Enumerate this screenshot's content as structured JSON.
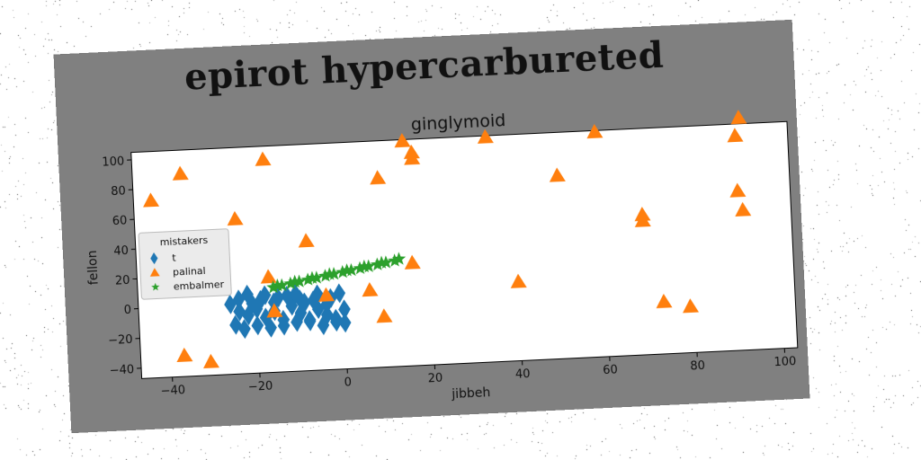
{
  "figure": {
    "suptitle": "epirot hypercarbureted",
    "background": "#808080"
  },
  "chart_data": {
    "type": "scatter",
    "title": "ginglymoid",
    "xlabel": "jibbeh",
    "ylabel": "fellon",
    "xlim": [
      -47,
      103
    ],
    "ylim": [
      -47,
      105
    ],
    "xticks": [
      -40,
      -20,
      0,
      20,
      40,
      60,
      80,
      100
    ],
    "yticks": [
      -40,
      -20,
      0,
      20,
      40,
      60,
      80,
      100
    ],
    "grid": false,
    "legend": {
      "title": "mistakers",
      "placement": "center-left"
    },
    "series": [
      {
        "name": "t",
        "marker": "diamond",
        "color": "#1f77b4",
        "points": [
          [
            -24,
            -5
          ],
          [
            -22,
            -8
          ],
          [
            -20,
            -4
          ],
          [
            -18,
            -10
          ],
          [
            -16,
            -6
          ],
          [
            -14,
            -12
          ],
          [
            -12,
            -3
          ],
          [
            -10,
            -8
          ],
          [
            -8,
            -14
          ],
          [
            -6,
            -6
          ],
          [
            -4,
            -10
          ],
          [
            -2,
            -15
          ],
          [
            0,
            -7
          ],
          [
            -25,
            -14
          ],
          [
            -23,
            -17
          ],
          [
            -20,
            -15
          ],
          [
            -17,
            -17
          ],
          [
            -14,
            -16
          ],
          [
            -11,
            -14
          ],
          [
            -8,
            -13
          ],
          [
            -5,
            -17
          ],
          [
            -2,
            -13
          ],
          [
            0,
            -16
          ],
          [
            -24,
            3
          ],
          [
            -21,
            0
          ],
          [
            -19,
            2
          ],
          [
            -16,
            0
          ],
          [
            -13,
            4
          ],
          [
            -11,
            5
          ],
          [
            -9,
            -1
          ],
          [
            -6,
            4
          ],
          [
            -3,
            1
          ],
          [
            -1,
            4
          ],
          [
            -22,
            6
          ],
          [
            -18,
            5
          ],
          [
            -15,
            3
          ],
          [
            -10,
            1
          ],
          [
            -7,
            0
          ],
          [
            -4,
            -3
          ],
          [
            -26,
            0
          ]
        ]
      },
      {
        "name": "palinal",
        "marker": "triangle",
        "color": "#ff7f0e",
        "points": [
          [
            -43,
            72
          ],
          [
            -36,
            89
          ],
          [
            -37,
            -33
          ],
          [
            -31,
            -38
          ],
          [
            -24,
            57
          ],
          [
            -17,
            96
          ],
          [
            -17,
            17
          ],
          [
            -16,
            -6
          ],
          [
            -8,
            40
          ],
          [
            -4,
            3
          ],
          [
            6,
            5
          ],
          [
            9,
            -13
          ],
          [
            9,
            80
          ],
          [
            15,
            104
          ],
          [
            17,
            96
          ],
          [
            17,
            92
          ],
          [
            16,
            22
          ],
          [
            34,
            104
          ],
          [
            40,
            6
          ],
          [
            50,
            76
          ],
          [
            59,
            104
          ],
          [
            69,
            47
          ],
          [
            69,
            43
          ],
          [
            73,
            -12
          ],
          [
            79,
            -16
          ],
          [
            91,
            97
          ],
          [
            91,
            60
          ],
          [
            92,
            47
          ],
          [
            92,
            109
          ]
        ]
      },
      {
        "name": "embalmer",
        "marker": "star",
        "color": "#2ca02c",
        "points": [
          [
            -16,
            10
          ],
          [
            -14,
            11
          ],
          [
            -12,
            12
          ],
          [
            -10,
            13
          ],
          [
            -8,
            14
          ],
          [
            -6,
            15
          ],
          [
            -4,
            16
          ],
          [
            -2,
            17
          ],
          [
            0,
            18
          ],
          [
            2,
            19
          ],
          [
            4,
            20
          ],
          [
            6,
            21
          ],
          [
            8,
            22
          ],
          [
            10,
            23
          ],
          [
            12,
            24
          ],
          [
            -15,
            11
          ],
          [
            -11,
            13
          ],
          [
            -7,
            15
          ],
          [
            -3,
            17
          ],
          [
            1,
            19
          ],
          [
            5,
            21
          ],
          [
            9,
            23
          ],
          [
            13,
            25
          ]
        ]
      }
    ]
  }
}
